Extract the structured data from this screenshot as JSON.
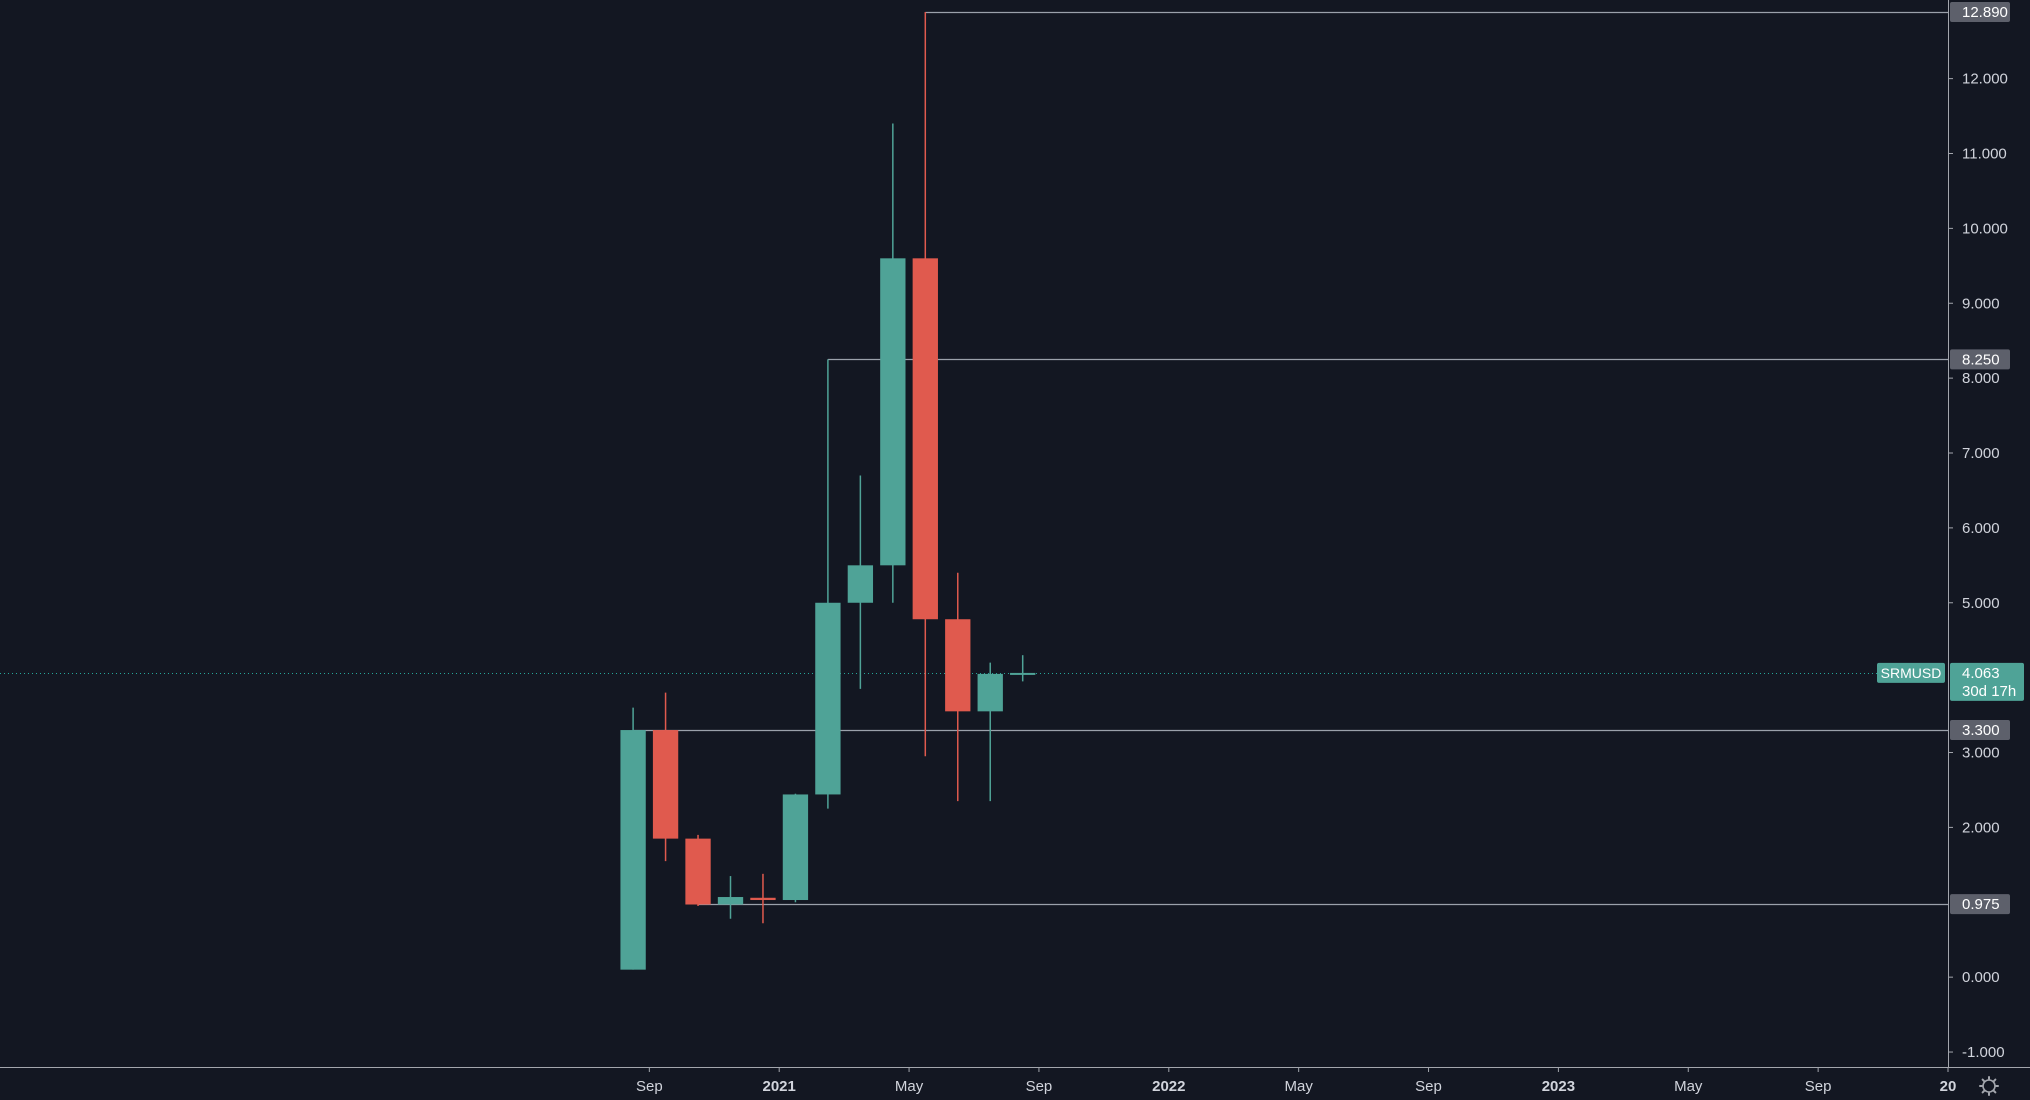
{
  "chart_data": {
    "type": "candlestick",
    "symbol": "SRMUSD",
    "interval": "monthly",
    "candles": [
      {
        "month": "2020-08",
        "open": 0.1,
        "high": 3.6,
        "low": 0.1,
        "close": 3.3
      },
      {
        "month": "2020-09",
        "open": 3.3,
        "high": 3.8,
        "low": 1.55,
        "close": 1.85
      },
      {
        "month": "2020-10",
        "open": 1.85,
        "high": 1.9,
        "low": 0.95,
        "close": 0.97
      },
      {
        "month": "2020-11",
        "open": 0.97,
        "high": 1.35,
        "low": 0.78,
        "close": 1.07
      },
      {
        "month": "2020-12",
        "open": 1.06,
        "high": 1.38,
        "low": 0.72,
        "close": 1.03
      },
      {
        "month": "2021-01",
        "open": 1.03,
        "high": 2.45,
        "low": 1.0,
        "close": 2.44
      },
      {
        "month": "2021-02",
        "open": 2.44,
        "high": 8.25,
        "low": 2.25,
        "close": 5.0
      },
      {
        "month": "2021-03",
        "open": 5.0,
        "high": 6.7,
        "low": 3.85,
        "close": 5.5
      },
      {
        "month": "2021-04",
        "open": 5.5,
        "high": 11.4,
        "low": 5.0,
        "close": 9.6
      },
      {
        "month": "2021-05",
        "open": 9.6,
        "high": 12.89,
        "low": 2.95,
        "close": 4.78
      },
      {
        "month": "2021-06",
        "open": 4.78,
        "high": 5.4,
        "low": 2.35,
        "close": 3.55
      },
      {
        "month": "2021-07",
        "open": 3.55,
        "high": 4.2,
        "low": 2.35,
        "close": 4.05
      },
      {
        "month": "2021-08",
        "open": 4.05,
        "high": 4.3,
        "low": 3.95,
        "close": 4.063
      }
    ],
    "levels": [
      {
        "value": 12.89,
        "label": "12.890",
        "from_month": "2021-05"
      },
      {
        "value": 8.25,
        "label": "8.250",
        "from_month": "2021-02"
      },
      {
        "value": 3.3,
        "label": "3.300",
        "from_month": "2020-08"
      },
      {
        "value": 0.975,
        "label": "0.975",
        "from_month": "2020-10"
      }
    ],
    "last_price": {
      "value": 4.063,
      "label": "4.063",
      "countdown": "30d 17h"
    },
    "y_ticks": [
      "12.000",
      "11.000",
      "10.000",
      "9.000",
      "8.000",
      "7.000",
      "6.000",
      "5.000",
      "3.000",
      "2.000",
      "0.000",
      "-1.000"
    ],
    "y_tick_values": [
      12,
      11,
      10,
      9,
      8,
      7,
      6,
      5,
      3,
      2,
      0,
      -1
    ],
    "x_ticks": [
      {
        "label": "Sep",
        "month": "2020-09",
        "bold": false
      },
      {
        "label": "2021",
        "month": "2021-01",
        "bold": true
      },
      {
        "label": "May",
        "month": "2021-05",
        "bold": false
      },
      {
        "label": "Sep",
        "month": "2021-09",
        "bold": false
      },
      {
        "label": "2022",
        "month": "2022-01",
        "bold": true
      },
      {
        "label": "May",
        "month": "2022-05",
        "bold": false
      },
      {
        "label": "Sep",
        "month": "2022-09",
        "bold": false
      },
      {
        "label": "2023",
        "month": "2023-01",
        "bold": true
      },
      {
        "label": "May",
        "month": "2023-05",
        "bold": false
      },
      {
        "label": "Sep",
        "month": "2023-09",
        "bold": false
      },
      {
        "label": "20",
        "month": "2024-01",
        "bold": true
      }
    ],
    "x_range": [
      "2019-01",
      "2024-01"
    ],
    "y_range": [
      -1.2,
      13.05
    ],
    "colors": {
      "background": "#131722",
      "up": "#26a69a",
      "up_body": "#4fa397",
      "down": "#e05a4e",
      "level_line": "#9ba1ab",
      "level_tag": "#5d606b",
      "price_tag": "#4fa397",
      "text": "#d1d4dc"
    },
    "grid": false,
    "legend": "none"
  }
}
